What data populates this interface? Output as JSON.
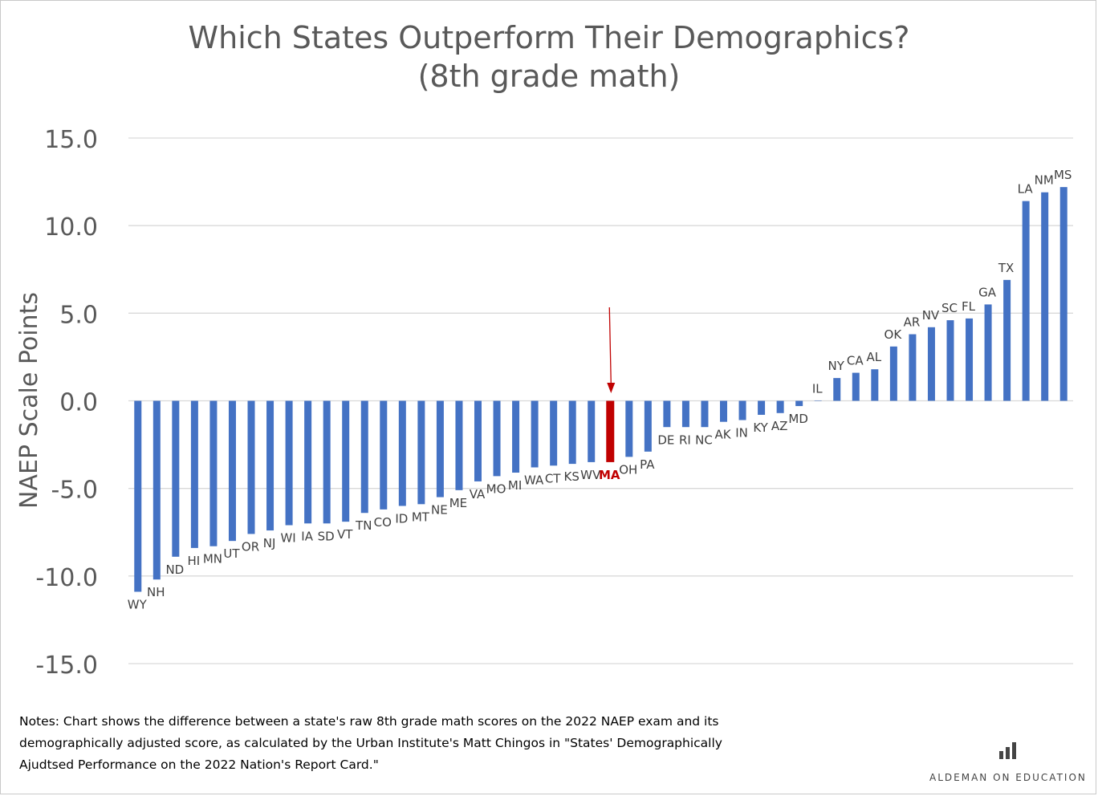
{
  "title_lines": [
    "Which States Outperform Their Demographics?",
    "(8th grade math)"
  ],
  "notes": "Notes: Chart shows the difference between a state's raw 8th grade math scores on the 2022 NAEP exam and its demographically adjusted score, as calculated by the Urban Institute's Matt Chingos in \"States' Demographically Ajudtsed Performance on the 2022 Nation's Report Card.\"",
  "brand": {
    "text": "ALDEMAN ON EDUCATION",
    "logo_icon": "bar-chart-icon"
  },
  "colors": {
    "bar": "#4472C4",
    "highlight": "#C00000",
    "grid": "#D9D9D9",
    "text": "#595959",
    "label": "#404040"
  },
  "chart_data": {
    "type": "bar",
    "title": "Which States Outperform Their Demographics? (8th grade math)",
    "ylabel": "NAEP Scale Points",
    "xlabel": "",
    "ylim": [
      -15,
      15
    ],
    "yticks": [
      "15.0",
      "10.0",
      "5.0",
      "0.0",
      "-5.0",
      "-10.0",
      "-15.0"
    ],
    "grid": true,
    "highlight": "MA",
    "annotation": "arrow pointing to MA",
    "categories": [
      "WY",
      "NH",
      "ND",
      "HI",
      "MN",
      "UT",
      "OR",
      "NJ",
      "WI",
      "IA",
      "SD",
      "VT",
      "TN",
      "CO",
      "ID",
      "MT",
      "NE",
      "ME",
      "VA",
      "MO",
      "MI",
      "WA",
      "CT",
      "KS",
      "WV",
      "MA",
      "OH",
      "PA",
      "DE",
      "RI",
      "NC",
      "AK",
      "IN",
      "KY",
      "AZ",
      "MD",
      "IL",
      "NY",
      "CA",
      "AL",
      "OK",
      "AR",
      "NV",
      "SC",
      "FL",
      "GA",
      "TX",
      "LA",
      "NM",
      "MS"
    ],
    "values": [
      -10.9,
      -10.2,
      -8.9,
      -8.4,
      -8.3,
      -8.0,
      -7.6,
      -7.4,
      -7.1,
      -7.0,
      -7.0,
      -6.9,
      -6.4,
      -6.2,
      -6.0,
      -5.9,
      -5.5,
      -5.1,
      -4.6,
      -4.3,
      -4.1,
      -3.8,
      -3.7,
      -3.6,
      -3.5,
      -3.5,
      -3.2,
      -2.9,
      -1.5,
      -1.5,
      -1.5,
      -1.2,
      -1.1,
      -0.8,
      -0.7,
      -0.3,
      0.0,
      1.3,
      1.6,
      1.8,
      3.1,
      3.8,
      4.2,
      4.6,
      4.7,
      5.5,
      6.9,
      11.4,
      11.9,
      12.2
    ]
  }
}
